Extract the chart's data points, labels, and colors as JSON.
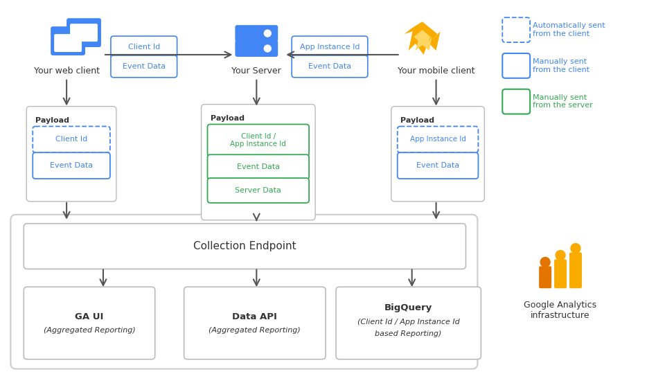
{
  "bg_color": "#ffffff",
  "blue": "#4285f4",
  "green": "#34a853",
  "dark": "#333333",
  "gray_border": "#aaaaaa",
  "arrow_color": "#555555",
  "legend": {
    "auto_label": "Automatically sent\nfrom the client",
    "manual_client_label": "Manually sent\nfrom the client",
    "manual_server_label": "Manually sent\nfrom the server"
  },
  "ga_label": "Google Analytics\ninfrastructure"
}
